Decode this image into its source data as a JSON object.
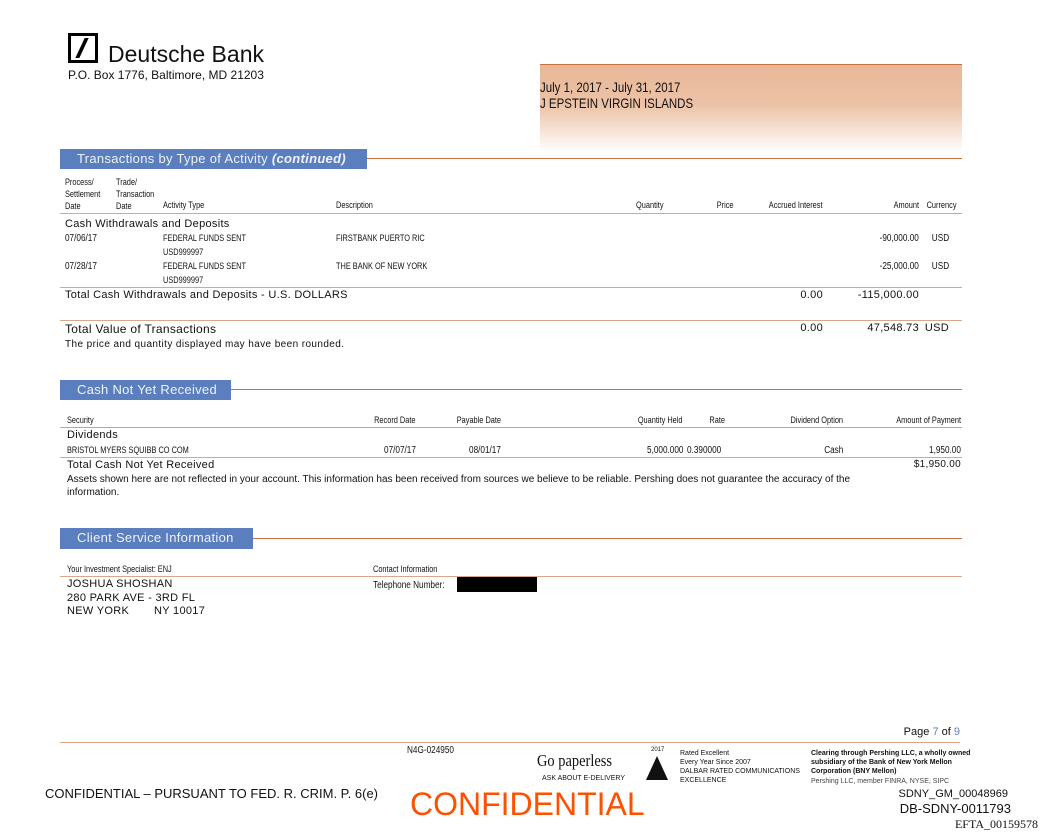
{
  "header": {
    "bank_name": "Deutsche Bank",
    "address": "P.O. Box 1776, Baltimore, MD 21203",
    "period": "July 1, 2017 - July 31, 2017",
    "account_name": "J EPSTEIN VIRGIN ISLANDS",
    "logo_icon": "deutsche-bank-slash-logo"
  },
  "transactions": {
    "title": "Transactions by Type of Activity",
    "title_suffix": "(continued)",
    "columns": {
      "settlement": [
        "Process/",
        "Settlement",
        "Date"
      ],
      "trade": [
        "Trade/",
        "Transaction",
        "Date"
      ],
      "activity": "Activity Type",
      "description": "Description",
      "quantity": "Quantity",
      "price": "Price",
      "accrued": "Accrued Interest",
      "amount": "Amount",
      "currency": "Currency"
    },
    "group": "Cash Withdrawals and Deposits",
    "rows": [
      {
        "date": "07/06/17",
        "activity": "FEDERAL FUNDS SENT",
        "activity2": "USD999997",
        "description": "FIRSTBANK PUERTO RIC",
        "amount": "-90,000.00",
        "currency": "USD"
      },
      {
        "date": "07/28/17",
        "activity": "FEDERAL FUNDS SENT",
        "activity2": "USD999997",
        "description": "THE BANK OF NEW YORK",
        "amount": "-25,000.00",
        "currency": "USD"
      }
    ],
    "group_total": {
      "label": "Total Cash Withdrawals and Deposits - U.S. DOLLARS",
      "accrued": "0.00",
      "amount": "-115,000.00"
    },
    "total": {
      "label": "Total Value of Transactions",
      "accrued": "0.00",
      "amount": "47,548.73",
      "currency": "USD"
    },
    "note": "The price and quantity displayed may have been rounded."
  },
  "cash_not_received": {
    "title": "Cash Not Yet Received",
    "columns": {
      "security": "Security",
      "record": "Record Date",
      "payable": "Payable Date",
      "qty": "Quantity Held",
      "rate": "Rate",
      "option": "Dividend Option",
      "amount": "Amount of Payment"
    },
    "group": "Dividends",
    "row": {
      "security": "BRISTOL MYERS SQUIBB CO COM",
      "record": "07/07/17",
      "payable": "08/01/17",
      "qty": "5,000.000",
      "rate": "0.390000",
      "option": "Cash",
      "amount": "1,950.00"
    },
    "total": {
      "label": "Total Cash Not Yet Received",
      "amount": "$1,950.00"
    },
    "note1": "Assets shown here are not reflected in your account. This information has been received from sources we believe to be reliable. Pershing does not guarantee the accuracy of the",
    "note2": "information."
  },
  "client_service": {
    "title": "Client Service Information",
    "specialist_label": "Your Investment Specialist: ENJ",
    "contact_label": "Contact Information",
    "name": "JOSHUA SHOSHAN",
    "addr1": "280 PARK AVE - 3RD FL",
    "city": "NEW YORK",
    "state_zip": "NY 10017",
    "telephone_label": "Telephone Number:"
  },
  "footer": {
    "page_prefix": "Page",
    "page_num": "7",
    "page_of": "of",
    "page_total": "9",
    "code": "N4G-024950",
    "paperless": "Go paperless",
    "paperless_sub": "ASK ABOUT E-DELIVERY",
    "dalbar_year": "2017",
    "dalbar": [
      "Rated Excellent",
      "Every Year Since 2007",
      "DALBAR RATED COMMUNICATIONS",
      "EXCELLENCE"
    ],
    "clearing": [
      "Clearing through Pershing LLC, a wholly owned",
      "subsidiary of the Bank of New York Mellon",
      "Corporation (BNY Mellon)"
    ],
    "pershing": "Pershing LLC, member FINRA, NYSE, SIPC",
    "confidential_stamp": "CONFIDENTIAL",
    "confidential_notice": "CONFIDENTIAL – PURSUANT TO FED. R. CRIM. P. 6(e)",
    "bates1": "SDNY_GM_00048969",
    "bates2": "DB-SDNY-0011793",
    "bates3": "EFTA_00159578"
  },
  "colors": {
    "section_bar": "#5b7fbe",
    "rule": "#c8703f",
    "stamp": "#ff5000",
    "period_box": "#e8b898"
  }
}
